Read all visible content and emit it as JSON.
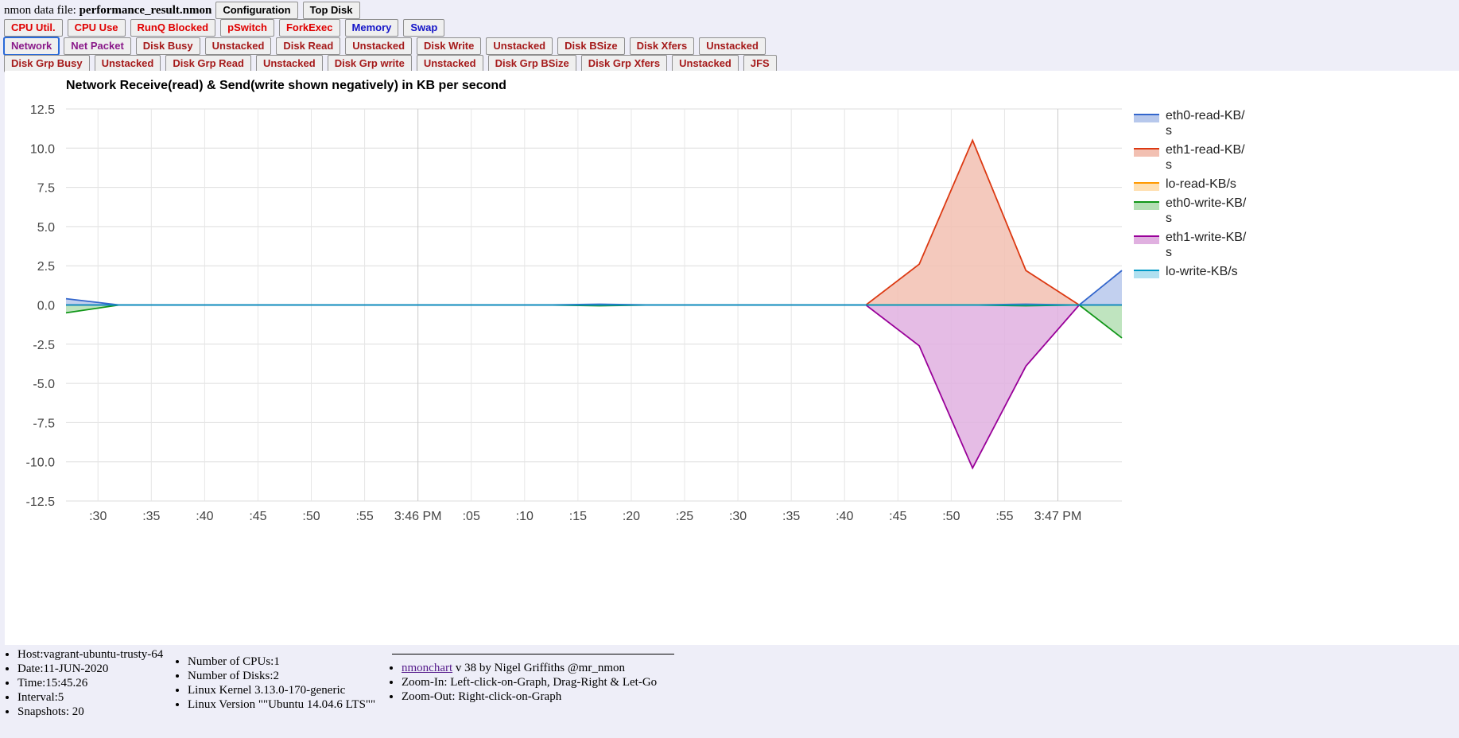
{
  "header": {
    "file_prefix": "nmon data file: ",
    "file_name": "performance_result.nmon",
    "config_button": "Configuration",
    "topdisk_button": "Top Disk"
  },
  "buttons": {
    "row1": [
      {
        "label": "CPU Util.",
        "color": "#e00000"
      },
      {
        "label": "CPU Use",
        "color": "#e00000"
      },
      {
        "label": "RunQ Blocked",
        "color": "#e00000"
      },
      {
        "label": "pSwitch",
        "color": "#e00000"
      },
      {
        "label": "ForkExec",
        "color": "#e00000"
      },
      {
        "label": "Memory",
        "color": "#1515c8"
      },
      {
        "label": "Swap",
        "color": "#1515c8"
      }
    ],
    "row2": [
      {
        "label": "Network",
        "color": "#8a1a8a",
        "active": true
      },
      {
        "label": "Net Packet",
        "color": "#8a1a8a"
      },
      {
        "label": "Disk Busy",
        "color": "#a51a1a"
      },
      {
        "label": "Unstacked",
        "color": "#a51a1a"
      },
      {
        "label": "Disk Read",
        "color": "#a51a1a"
      },
      {
        "label": "Unstacked",
        "color": "#a51a1a"
      },
      {
        "label": "Disk Write",
        "color": "#a51a1a"
      },
      {
        "label": "Unstacked",
        "color": "#a51a1a"
      },
      {
        "label": "Disk BSize",
        "color": "#a51a1a"
      },
      {
        "label": "Disk Xfers",
        "color": "#a51a1a"
      },
      {
        "label": "Unstacked",
        "color": "#a51a1a"
      }
    ],
    "row3": [
      {
        "label": "Disk Grp Busy",
        "color": "#a51a1a"
      },
      {
        "label": "Unstacked",
        "color": "#a51a1a"
      },
      {
        "label": "Disk Grp Read",
        "color": "#a51a1a"
      },
      {
        "label": "Unstacked",
        "color": "#a51a1a"
      },
      {
        "label": "Disk Grp write",
        "color": "#a51a1a"
      },
      {
        "label": "Unstacked",
        "color": "#a51a1a"
      },
      {
        "label": "Disk Grp BSize",
        "color": "#a51a1a"
      },
      {
        "label": "Disk Grp Xfers",
        "color": "#a51a1a"
      },
      {
        "label": "Unstacked",
        "color": "#a51a1a"
      },
      {
        "label": "JFS",
        "color": "#a51a1a"
      }
    ]
  },
  "chart_data": {
    "type": "area",
    "title": "Network Receive(read) & Send(write shown negatively) in KB per second",
    "xlabel": "",
    "ylabel": "",
    "ylim": [
      -12.5,
      12.5
    ],
    "y_ticks": [
      "12.5",
      "10.0",
      "7.5",
      "5.0",
      "2.5",
      "0.0",
      "-2.5",
      "-5.0",
      "-7.5",
      "-10.0",
      "-12.5"
    ],
    "x_unit": "seconds after 3:45 PM",
    "x_range": [
      27,
      126
    ],
    "x_ticks": [
      {
        "x": 30,
        "label": ":30"
      },
      {
        "x": 35,
        "label": ":35"
      },
      {
        "x": 40,
        "label": ":40"
      },
      {
        "x": 45,
        "label": ":45"
      },
      {
        "x": 50,
        "label": ":50"
      },
      {
        "x": 55,
        "label": ":55"
      },
      {
        "x": 60,
        "label": "3:46 PM"
      },
      {
        "x": 65,
        "label": ":05"
      },
      {
        "x": 70,
        "label": ":10"
      },
      {
        "x": 75,
        "label": ":15"
      },
      {
        "x": 80,
        "label": ":20"
      },
      {
        "x": 85,
        "label": ":25"
      },
      {
        "x": 90,
        "label": ":30"
      },
      {
        "x": 95,
        "label": ":35"
      },
      {
        "x": 100,
        "label": ":40"
      },
      {
        "x": 105,
        "label": ":45"
      },
      {
        "x": 110,
        "label": ":50"
      },
      {
        "x": 115,
        "label": ":55"
      },
      {
        "x": 120,
        "label": "3:47 PM"
      }
    ],
    "x": [
      27,
      32,
      37,
      42,
      47,
      52,
      57,
      62,
      67,
      72,
      77,
      82,
      87,
      92,
      97,
      102,
      107,
      112,
      117,
      122,
      126
    ],
    "legend_position": "right",
    "grid": true,
    "series": [
      {
        "name": "eth0-read-KB/s",
        "color": "#3366cc",
        "fill": "#b7c8ec",
        "values": [
          0.4,
          0,
          0,
          0,
          0,
          0,
          0,
          0,
          0,
          0,
          0.05,
          0,
          0,
          0,
          0,
          0,
          0,
          0,
          0.05,
          0,
          2.2
        ]
      },
      {
        "name": "eth1-read-KB/s",
        "color": "#dc3912",
        "fill": "#f2c0b2",
        "values": [
          0,
          0,
          0,
          0,
          0,
          0,
          0,
          0,
          0,
          0,
          0,
          0,
          0,
          0,
          0,
          0,
          2.6,
          10.5,
          2.2,
          0,
          0
        ]
      },
      {
        "name": "lo-read-KB/s",
        "color": "#ff9900",
        "fill": "#ffe0b2",
        "values": [
          0,
          0,
          0,
          0,
          0,
          0,
          0,
          0,
          0,
          0,
          0,
          0,
          0,
          0,
          0,
          0,
          0,
          0,
          0,
          0,
          0
        ]
      },
      {
        "name": "eth0-write-KB/s",
        "color": "#109618",
        "fill": "#b4dfb4",
        "values": [
          -0.5,
          0,
          0,
          0,
          0,
          0,
          0,
          0,
          0,
          0,
          -0.05,
          0,
          0,
          0,
          0,
          0,
          0,
          0,
          -0.05,
          0,
          -2.1
        ]
      },
      {
        "name": "eth1-write-KB/s",
        "color": "#990099",
        "fill": "#e0b0e0",
        "values": [
          0,
          0,
          0,
          0,
          0,
          0,
          0,
          0,
          0,
          0,
          0,
          0,
          0,
          0,
          0,
          0,
          -2.6,
          -10.4,
          -3.9,
          0,
          0
        ]
      },
      {
        "name": "lo-write-KB/s",
        "color": "#0099c6",
        "fill": "#b0e0f0",
        "values": [
          0,
          0,
          0,
          0,
          0,
          0,
          0,
          0,
          0,
          0,
          0,
          0,
          0,
          0,
          0,
          0,
          0,
          0,
          0,
          0,
          0
        ]
      }
    ]
  },
  "legend_lines": [
    [
      "eth0-read-KB/",
      "s"
    ],
    [
      "eth1-read-KB/",
      "s"
    ],
    [
      "lo-read-KB/s"
    ],
    [
      "eth0-write-KB/",
      "s"
    ],
    [
      "eth1-write-KB/",
      "s"
    ],
    [
      "lo-write-KB/s"
    ]
  ],
  "footer": {
    "host_info": [
      "Host:vagrant-ubuntu-trusty-64",
      "Date:11-JUN-2020",
      "Time:15:45.26",
      "Interval:5",
      "Snapshots: 20"
    ],
    "system_info": [
      "Number of CPUs:1",
      "Number of Disks:2",
      "Linux Kernel 3.13.0-170-generic",
      "Linux Version \"\"Ubuntu 14.04.6 LTS\"\""
    ],
    "credit_link": "nmonchart",
    "credit_rest": " v 38 by Nigel Griffiths @mr_nmon",
    "zoom_in": "Zoom-In: Left-click-on-Graph, Drag-Right & Let-Go",
    "zoom_out": "Zoom-Out: Right-click-on-Graph"
  }
}
